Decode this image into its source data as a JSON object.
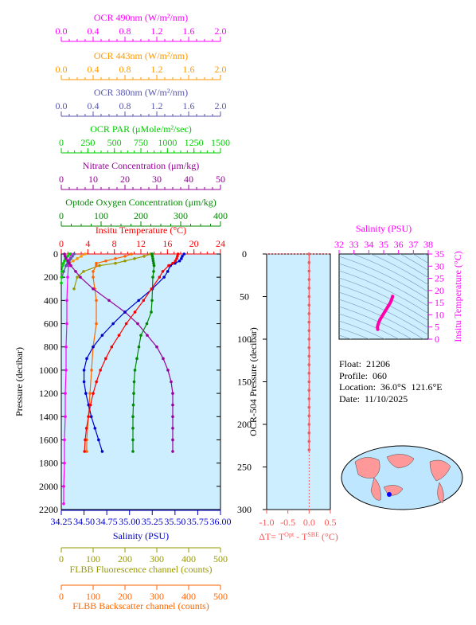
{
  "colors": {
    "ocr490": "#ff00ff",
    "ocr443": "#ff9900",
    "ocr380": "#5555aa",
    "par": "#00cc00",
    "nitrate": "#990099",
    "oxygen": "#008800",
    "temperature": "#ff0000",
    "salinity": "#0000cc",
    "fluor": "#999900",
    "backscatter": "#ff6600",
    "panel_bg": "#cceeff",
    "dT": "#ff5555",
    "ts_pink": "#ff00aa"
  },
  "top_axes": [
    {
      "key": "ocr490",
      "label": "OCR 490nm (W/m²/nm)",
      "ticks": [
        "0.0",
        "0.4",
        "0.8",
        "1.2",
        "1.6",
        "2.0"
      ]
    },
    {
      "key": "ocr443",
      "label": "OCR 443nm (W/m²/nm)",
      "ticks": [
        "0.0",
        "0.4",
        "0.8",
        "1.2",
        "1.6",
        "2.0"
      ]
    },
    {
      "key": "ocr380",
      "label": "OCR 380nm (W/m²/nm)",
      "ticks": [
        "0.0",
        "0.4",
        "0.8",
        "1.2",
        "1.6",
        "2.0"
      ]
    },
    {
      "key": "par",
      "label": "OCR PAR (μMole/m²/sec)",
      "ticks": [
        "0",
        "250",
        "500",
        "750",
        "1000",
        "1250",
        "1500"
      ]
    },
    {
      "key": "nitrate",
      "label": "Nitrate Concentration (μm/kg)",
      "ticks": [
        "0",
        "10",
        "20",
        "30",
        "40",
        "50"
      ]
    },
    {
      "key": "oxygen",
      "label": "Optode Oxygen Concentration (μm/kg)",
      "ticks": [
        "0",
        "100",
        "200",
        "300",
        "400"
      ]
    },
    {
      "key": "temperature",
      "label": "Insitu Temperature (°C)",
      "ticks": [
        "0",
        "4",
        "8",
        "12",
        "16",
        "20",
        "24"
      ]
    }
  ],
  "bottom_axes": [
    {
      "key": "salinity",
      "label": "Salinity (PSU)",
      "ticks": [
        "34.25",
        "34.50",
        "34.75",
        "35.00",
        "35.25",
        "35.50",
        "35.75",
        "36.00"
      ]
    },
    {
      "key": "fluor",
      "label": "FLBB Fluorescence channel (counts)",
      "ticks": [
        "0",
        "100",
        "200",
        "300",
        "400",
        "500"
      ]
    },
    {
      "key": "backscatter",
      "label": "FLBB Backscatter channel (counts)",
      "ticks": [
        "0",
        "100",
        "200",
        "300",
        "400",
        "500"
      ]
    }
  ],
  "pressure_axis": {
    "label": "Pressure (decibar)",
    "ticks": [
      "0",
      "200",
      "400",
      "600",
      "800",
      "1000",
      "1200",
      "1400",
      "1600",
      "1800",
      "2000",
      "2200"
    ]
  },
  "dt_panel": {
    "ylabel": "OCR-504 Pressure (decibar)",
    "yticks": [
      "0",
      "50",
      "100",
      "150",
      "200",
      "250",
      "300"
    ],
    "xticks": [
      "-1.0",
      "-0.5",
      "0.0",
      "0.5"
    ],
    "xlabel": "ΔT= T^Opt - T^SBE (°C)"
  },
  "ts_panel": {
    "xlabel": "Salinity (PSU)",
    "ylabel": "Insitu Temperature (°C)",
    "xticks": [
      "32",
      "33",
      "34",
      "35",
      "36",
      "37",
      "38"
    ],
    "yticks": [
      "0",
      "5",
      "10",
      "15",
      "20",
      "25",
      "30",
      "35"
    ]
  },
  "info": {
    "float": "Float:  21206",
    "profile": "Profile:  060",
    "location": "Location:  36.0°S  121.6°E",
    "date": "Date:  11/10/2025"
  },
  "chart_data": {
    "type": "line",
    "profiles": {
      "temperature": {
        "unit": "°C",
        "p": [
          0,
          20,
          40,
          60,
          80,
          100,
          150,
          200,
          300,
          400,
          500,
          600,
          700,
          800,
          900,
          1000,
          1100,
          1200,
          1300,
          1400,
          1500,
          1600,
          1700
        ],
        "v": [
          17.6,
          17.5,
          17.4,
          17.2,
          16.8,
          16.2,
          15.3,
          14.8,
          13.6,
          12.4,
          11.1,
          9.8,
          8.7,
          7.6,
          6.7,
          5.9,
          5.3,
          4.8,
          4.4,
          4.1,
          3.8,
          3.6,
          3.5
        ]
      },
      "salinity": {
        "unit": "PSU",
        "p": [
          0,
          20,
          40,
          60,
          80,
          100,
          150,
          200,
          300,
          400,
          500,
          600,
          700,
          800,
          900,
          1000,
          1100,
          1200,
          1300,
          1400,
          1500,
          1600,
          1700
        ],
        "v": [
          35.6,
          35.58,
          35.57,
          35.55,
          35.5,
          35.45,
          35.42,
          35.38,
          35.25,
          35.1,
          34.95,
          34.82,
          34.7,
          34.6,
          34.53,
          34.5,
          34.5,
          34.52,
          34.55,
          34.58,
          34.62,
          34.66,
          34.7
        ]
      },
      "oxygen": {
        "unit": "μm/kg",
        "p": [
          0,
          20,
          40,
          60,
          80,
          100,
          150,
          200,
          300,
          400,
          500,
          600,
          700,
          800,
          900,
          1000,
          1100,
          1200,
          1300,
          1400,
          1500,
          1600,
          1700
        ],
        "v": [
          228,
          229,
          230,
          231,
          232,
          233,
          232,
          230,
          229,
          228,
          226,
          215,
          200,
          195,
          190,
          185,
          183,
          182,
          181,
          180,
          180,
          180,
          180
        ]
      },
      "nitrate": {
        "unit": "μm/kg",
        "p": [
          0,
          20,
          40,
          60,
          80,
          100,
          150,
          200,
          300,
          400,
          500,
          600,
          700,
          800,
          900,
          1000,
          1100,
          1200,
          1300,
          1400,
          1500,
          1600,
          1700
        ],
        "v": [
          1.0,
          1.2,
          1.5,
          2.0,
          2.5,
          3.0,
          4.5,
          6.0,
          10.0,
          15.0,
          20.0,
          24.0,
          27.0,
          30.0,
          32.0,
          33.5,
          34.5,
          35.0,
          35.0,
          35.0,
          35.0,
          35.0,
          35.0
        ]
      },
      "par": {
        "unit": "μMole/m²/sec",
        "p": [
          0,
          20,
          40,
          60,
          80,
          100,
          150,
          200,
          250
        ],
        "v": [
          80,
          60,
          40,
          30,
          20,
          12,
          6,
          2,
          0
        ]
      },
      "ocr490": {
        "unit": "W/m²/nm",
        "p": [
          0,
          50,
          100,
          200,
          400,
          600,
          800,
          1000,
          1200,
          1400,
          1600,
          1800,
          2000,
          2150
        ],
        "v": [
          0.12,
          0.1,
          0.09,
          0.08,
          0.07,
          0.07,
          0.06,
          0.06,
          0.05,
          0.05,
          0.04,
          0.04,
          0.03,
          0.03
        ]
      },
      "ocr443": {
        "unit": "W/m²/nm",
        "p": [
          0,
          20,
          40,
          60,
          80,
          100,
          150,
          200
        ],
        "v": [
          0.3,
          0.25,
          0.2,
          0.15,
          0.1,
          0.06,
          0.03,
          0.01
        ]
      },
      "ocr380": {
        "unit": "W/m²/nm",
        "p": [
          0,
          20,
          40,
          60,
          80,
          100,
          150,
          200
        ],
        "v": [
          0.16,
          0.14,
          0.12,
          0.1,
          0.08,
          0.06,
          0.03,
          0.01
        ]
      },
      "fluor": {
        "unit": "counts",
        "p": [
          0,
          20,
          40,
          60,
          80,
          100,
          150,
          200,
          300
        ],
        "v": [
          280,
          260,
          230,
          200,
          170,
          120,
          70,
          50,
          40
        ]
      },
      "backscatter": {
        "unit": "counts",
        "p": [
          0,
          20,
          40,
          60,
          80,
          100,
          150,
          200,
          300,
          400,
          600,
          800,
          1000,
          1200,
          1400,
          1600,
          1700
        ],
        "v": [
          220,
          200,
          170,
          140,
          110,
          110,
          100,
          100,
          105,
          110,
          110,
          100,
          95,
          90,
          85,
          80,
          80
        ]
      }
    },
    "dT": {
      "unit": "°C",
      "p": [
        0,
        10,
        20,
        30,
        40,
        50,
        60,
        70,
        80,
        90,
        100,
        110,
        120,
        130,
        140,
        150,
        160,
        170,
        180,
        190,
        200,
        210,
        220,
        230
      ],
      "v": [
        0.0,
        0.0,
        0.0,
        0.0,
        0.0,
        0.0,
        0.0,
        0.0,
        0.0,
        0.0,
        0.0,
        0.0,
        0.0,
        0.0,
        0.0,
        0.0,
        0.0,
        0.0,
        0.0,
        0.0,
        0.0,
        0.0,
        0.0,
        0.0
      ]
    },
    "ts": {
      "salinity": [
        34.6,
        34.58,
        34.62,
        34.68,
        34.75,
        34.85,
        34.95,
        35.05,
        35.15,
        35.25,
        35.35,
        35.45,
        35.55,
        35.6
      ],
      "temperature": [
        4.0,
        5.0,
        6.0,
        7.0,
        8.0,
        9.0,
        10.0,
        11.0,
        12.0,
        13.0,
        14.0,
        15.0,
        16.5,
        17.6
      ]
    }
  }
}
